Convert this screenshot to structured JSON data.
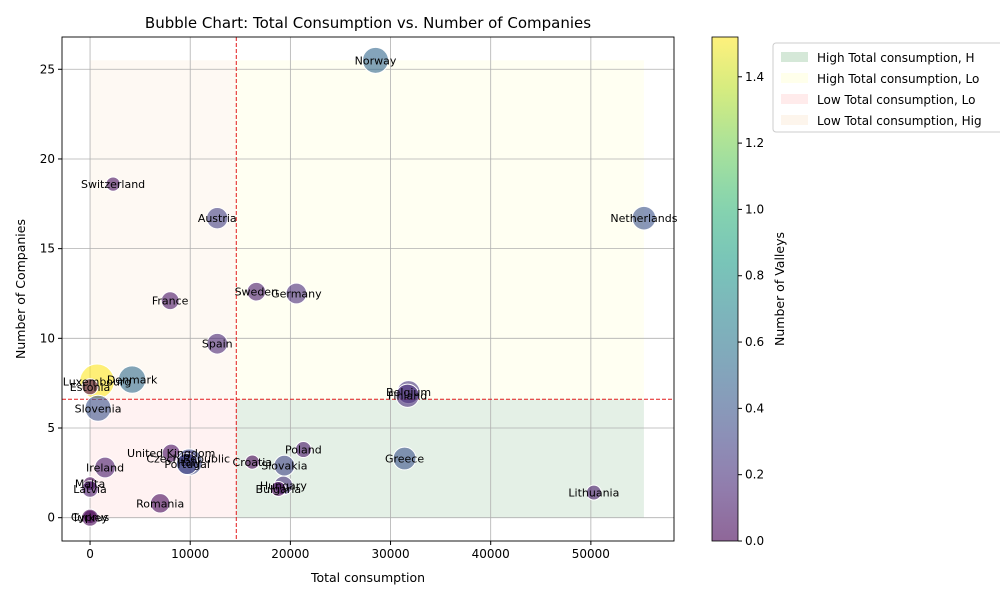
{
  "chart_data": {
    "type": "scatter",
    "title": "Bubble Chart: Total Consumption vs. Number of Companies",
    "xlabel": "Total consumption",
    "ylabel": "Number of Companies",
    "xlim": [
      -2800,
      58300
    ],
    "ylim": [
      -1.3,
      26.8
    ],
    "x_ticks": [
      0,
      10000,
      20000,
      30000,
      40000,
      50000
    ],
    "y_ticks": [
      0,
      5,
      10,
      15,
      20,
      25
    ],
    "grid": true,
    "threshold_x": 14600,
    "threshold_y": 6.6,
    "colorbar": {
      "label": "Number of Valleys",
      "min": 0.0,
      "max": 1.52,
      "ticks": [
        "0.0",
        "0.2",
        "0.4",
        "0.6",
        "0.8",
        "1.0",
        "1.2",
        "1.4"
      ],
      "tick_values": [
        0,
        0.2,
        0.4,
        0.6,
        0.8,
        1.0,
        1.2,
        1.4
      ]
    },
    "regions": [
      {
        "label": "High Total consumption, H",
        "color": "#2e8b3e",
        "quadrant": "bottom-right"
      },
      {
        "label": "High Total consumption, Lo",
        "color": "#ffff99",
        "quadrant": "top-right"
      },
      {
        "label": "Low Total consumption, Lo",
        "color": "#ff9999",
        "quadrant": "bottom-left"
      },
      {
        "label": "Low Total consumption, Hig",
        "color": "#f5cfa0",
        "quadrant": "top-left"
      }
    ],
    "legend_position": "upper right, outside plot",
    "points": [
      {
        "name": "Norway",
        "x": 28500,
        "y": 25.5,
        "valleys": 0.5,
        "size": 1.0
      },
      {
        "name": "Switzerland",
        "x": 2300,
        "y": 18.6,
        "valleys": 0.05,
        "size": 0.12
      },
      {
        "name": "Netherlands",
        "x": 55300,
        "y": 16.7,
        "valleys": 0.38,
        "size": 0.75
      },
      {
        "name": "Austria",
        "x": 12700,
        "y": 16.7,
        "valleys": 0.28,
        "size": 0.55
      },
      {
        "name": "Sweden",
        "x": 16600,
        "y": 12.6,
        "valleys": 0.1,
        "size": 0.35
      },
      {
        "name": "Germany",
        "x": 20600,
        "y": 12.5,
        "valleys": 0.18,
        "size": 0.5
      },
      {
        "name": "France",
        "x": 8000,
        "y": 12.1,
        "valleys": 0.08,
        "size": 0.3
      },
      {
        "name": "Spain",
        "x": 12700,
        "y": 9.7,
        "valleys": 0.15,
        "size": 0.5
      },
      {
        "name": "Luxembourg",
        "x": 700,
        "y": 7.6,
        "valleys": 1.52,
        "size": 2.2
      },
      {
        "name": "Denmark",
        "x": 4200,
        "y": 7.7,
        "valleys": 0.52,
        "size": 1.15
      },
      {
        "name": "Estonia",
        "x": 0,
        "y": 7.3,
        "valleys": 0.0,
        "size": 0.2
      },
      {
        "name": "Belgium",
        "x": 31800,
        "y": 7.0,
        "valleys": 0.22,
        "size": 0.7
      },
      {
        "name": "Finland",
        "x": 31700,
        "y": 6.8,
        "valleys": 0.18,
        "size": 0.72
      },
      {
        "name": "Slovenia",
        "x": 800,
        "y": 6.1,
        "valleys": 0.38,
        "size": 1.0
      },
      {
        "name": "Poland",
        "x": 21300,
        "y": 3.8,
        "valleys": 0.08,
        "size": 0.2
      },
      {
        "name": "United Kingdom",
        "x": 8100,
        "y": 3.6,
        "valleys": 0.05,
        "size": 0.3
      },
      {
        "name": "Czech Republic",
        "x": 9800,
        "y": 3.3,
        "valleys": 0.1,
        "size": 0.25
      },
      {
        "name": "Greece",
        "x": 31400,
        "y": 3.3,
        "valleys": 0.38,
        "size": 0.68
      },
      {
        "name": "Italy",
        "x": 9900,
        "y": 3.1,
        "valleys": 0.35,
        "size": 1.05
      },
      {
        "name": "Portugal",
        "x": 9700,
        "y": 3.0,
        "valleys": 0.3,
        "size": 0.55
      },
      {
        "name": "Croatia",
        "x": 16200,
        "y": 3.1,
        "valleys": 0.0,
        "size": 0.12
      },
      {
        "name": "Slovakia",
        "x": 19400,
        "y": 2.9,
        "valleys": 0.3,
        "size": 0.5
      },
      {
        "name": "Ireland",
        "x": 1500,
        "y": 2.8,
        "valleys": 0.1,
        "size": 0.5
      },
      {
        "name": "Hungary",
        "x": 19300,
        "y": 1.8,
        "valleys": 0.2,
        "size": 0.35
      },
      {
        "name": "Malta",
        "x": 0,
        "y": 1.9,
        "valleys": 0.0,
        "size": 0.1
      },
      {
        "name": "Latvia",
        "x": 0,
        "y": 1.6,
        "valleys": 0.1,
        "size": 0.22
      },
      {
        "name": "Bulgaria",
        "x": 18800,
        "y": 1.6,
        "valleys": 0.0,
        "size": 0.15
      },
      {
        "name": "Lithuania",
        "x": 50300,
        "y": 1.4,
        "valleys": 0.1,
        "size": 0.15
      },
      {
        "name": "Romania",
        "x": 7000,
        "y": 0.8,
        "valleys": 0.02,
        "size": 0.4
      },
      {
        "name": "Cyprus",
        "x": 0,
        "y": 0.05,
        "valleys": 0.0,
        "size": 0.1
      },
      {
        "name": "Turkey",
        "x": 0,
        "y": 0.0,
        "valleys": 0.0,
        "size": 0.25
      }
    ]
  }
}
